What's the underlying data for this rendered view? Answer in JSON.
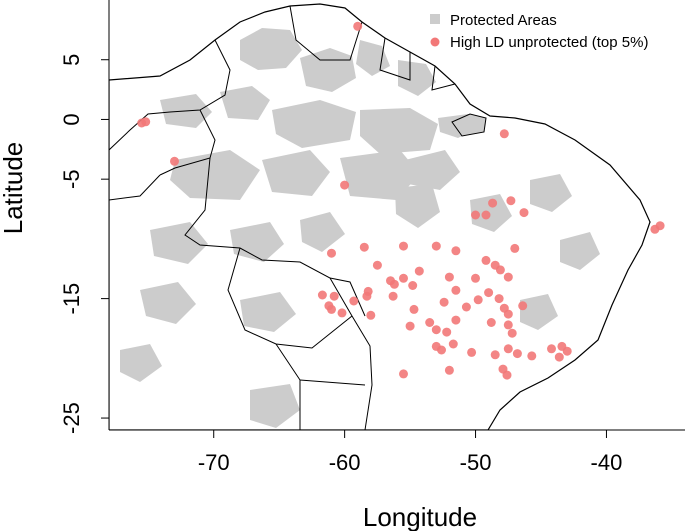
{
  "chart_data": {
    "type": "scatter",
    "title": "",
    "xlabel": "Longitude",
    "ylabel": "Latitude",
    "xlim": [
      -78,
      -34
    ],
    "ylim": [
      -26,
      10
    ],
    "x_ticks": [
      {
        "value": -70,
        "label": "-70"
      },
      {
        "value": -60,
        "label": "-60"
      },
      {
        "value": -50,
        "label": "-50"
      },
      {
        "value": -40,
        "label": "-40"
      }
    ],
    "y_ticks": [
      {
        "value": 5,
        "label": "5"
      },
      {
        "value": 0,
        "label": "0"
      },
      {
        "value": -5,
        "label": "-5"
      },
      {
        "value": -15,
        "label": "-15"
      },
      {
        "value": -25,
        "label": "-25"
      }
    ],
    "legend_position": "top-right",
    "legend": [
      {
        "label": "Protected Areas",
        "color": "#cccccc",
        "marker": "square"
      },
      {
        "label": "High LD unprotected (top 5%)",
        "color": "#f27878",
        "marker": "circle"
      }
    ],
    "colors": {
      "protected": "#cccccc",
      "unprotected": "#f27878",
      "land": "#ffffff",
      "borders": "#000000"
    },
    "series": [
      {
        "name": "High LD unprotected (top 5%)",
        "points": [
          {
            "x": -59.0,
            "y": 7.8
          },
          {
            "x": -75.5,
            "y": -0.3
          },
          {
            "x": -75.2,
            "y": -0.2
          },
          {
            "x": -73.0,
            "y": -3.5
          },
          {
            "x": -60.0,
            "y": -5.5
          },
          {
            "x": -47.8,
            "y": -1.2
          },
          {
            "x": -35.9,
            "y": -8.9
          },
          {
            "x": -36.3,
            "y": -9.2
          },
          {
            "x": -47.3,
            "y": -6.8
          },
          {
            "x": -48.7,
            "y": -7.0
          },
          {
            "x": -50.0,
            "y": -8.0
          },
          {
            "x": -49.2,
            "y": -8.0
          },
          {
            "x": -46.3,
            "y": -7.8
          },
          {
            "x": -61.0,
            "y": -11.2
          },
          {
            "x": -58.5,
            "y": -10.7
          },
          {
            "x": -55.5,
            "y": -10.6
          },
          {
            "x": -53.0,
            "y": -10.6
          },
          {
            "x": -47.0,
            "y": -10.8
          },
          {
            "x": -51.5,
            "y": -11.0
          },
          {
            "x": -49.2,
            "y": -11.8
          },
          {
            "x": -48.5,
            "y": -12.2
          },
          {
            "x": -57.5,
            "y": -12.2
          },
          {
            "x": -54.3,
            "y": -12.7
          },
          {
            "x": -56.5,
            "y": -13.5
          },
          {
            "x": -56.2,
            "y": -13.8
          },
          {
            "x": -55.5,
            "y": -13.3
          },
          {
            "x": -54.8,
            "y": -13.9
          },
          {
            "x": -52.0,
            "y": -13.2
          },
          {
            "x": -50.0,
            "y": -13.3
          },
          {
            "x": -48.1,
            "y": -12.6
          },
          {
            "x": -47.5,
            "y": -13.2
          },
          {
            "x": -51.5,
            "y": -14.3
          },
          {
            "x": -49.0,
            "y": -14.5
          },
          {
            "x": -48.2,
            "y": -15.0
          },
          {
            "x": -58.2,
            "y": -14.4
          },
          {
            "x": -58.3,
            "y": -14.8
          },
          {
            "x": -61.7,
            "y": -14.7
          },
          {
            "x": -60.8,
            "y": -14.8
          },
          {
            "x": -59.3,
            "y": -15.2
          },
          {
            "x": -56.3,
            "y": -14.8
          },
          {
            "x": -61.2,
            "y": -15.6
          },
          {
            "x": -61.0,
            "y": -15.9
          },
          {
            "x": -60.2,
            "y": -16.2
          },
          {
            "x": -58.0,
            "y": -16.4
          },
          {
            "x": -54.7,
            "y": -15.9
          },
          {
            "x": -52.4,
            "y": -15.3
          },
          {
            "x": -50.7,
            "y": -15.7
          },
          {
            "x": -49.8,
            "y": -15.1
          },
          {
            "x": -47.8,
            "y": -15.8
          },
          {
            "x": -47.5,
            "y": -16.3
          },
          {
            "x": -46.4,
            "y": -15.6
          },
          {
            "x": -51.5,
            "y": -16.8
          },
          {
            "x": -55.0,
            "y": -17.3
          },
          {
            "x": -53.5,
            "y": -17.0
          },
          {
            "x": -53.0,
            "y": -17.6
          },
          {
            "x": -52.2,
            "y": -17.8
          },
          {
            "x": -48.8,
            "y": -17.0
          },
          {
            "x": -47.5,
            "y": -17.2
          },
          {
            "x": -47.2,
            "y": -17.9
          },
          {
            "x": -53.0,
            "y": -19.0
          },
          {
            "x": -52.6,
            "y": -19.3
          },
          {
            "x": -51.7,
            "y": -18.8
          },
          {
            "x": -50.3,
            "y": -19.5
          },
          {
            "x": -48.5,
            "y": -19.7
          },
          {
            "x": -47.5,
            "y": -19.2
          },
          {
            "x": -46.8,
            "y": -19.6
          },
          {
            "x": -45.7,
            "y": -19.8
          },
          {
            "x": -44.2,
            "y": -19.2
          },
          {
            "x": -43.4,
            "y": -19.0
          },
          {
            "x": -43.0,
            "y": -19.4
          },
          {
            "x": -43.6,
            "y": -19.9
          },
          {
            "x": -55.5,
            "y": -21.3
          },
          {
            "x": -52.0,
            "y": -21.0
          },
          {
            "x": -47.9,
            "y": -20.9
          },
          {
            "x": -47.6,
            "y": -21.4
          }
        ]
      }
    ]
  }
}
